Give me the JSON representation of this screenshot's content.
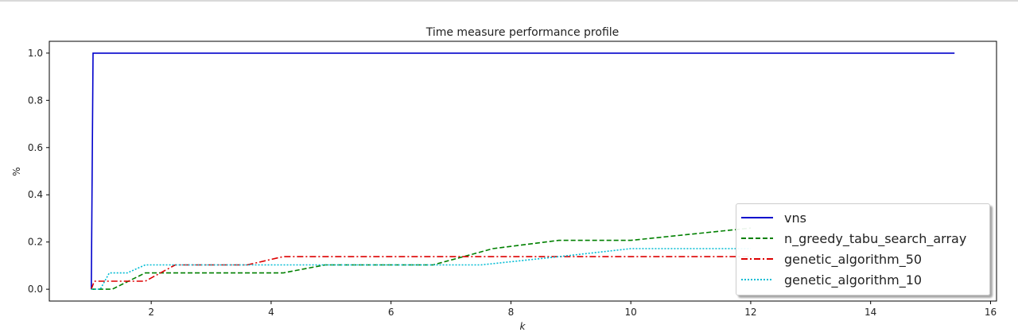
{
  "chart_data": {
    "type": "line",
    "title": "Time measure performance profile",
    "xlabel": "k",
    "ylabel": "%",
    "xlim": [
      0.3,
      16.1
    ],
    "ylim": [
      -0.05,
      1.05
    ],
    "xticks": [
      2,
      4,
      6,
      8,
      10,
      12,
      14,
      16
    ],
    "yticks": [
      "0.0",
      "0.2",
      "0.4",
      "0.6",
      "0.8",
      "1.0"
    ],
    "grid": false,
    "legend_position": "lower-right",
    "series": [
      {
        "name": "vns",
        "color": "#0000cc",
        "style": "solid",
        "points": [
          [
            1.0,
            0.0
          ],
          [
            1.03,
            1.0
          ],
          [
            15.4,
            1.0
          ]
        ]
      },
      {
        "name": "n_greedy_tabu_search_array",
        "color": "#008000",
        "style": "dashed",
        "points": [
          [
            1.0,
            0.0
          ],
          [
            1.35,
            0.0
          ],
          [
            1.9,
            0.069
          ],
          [
            4.2,
            0.069
          ],
          [
            4.9,
            0.103
          ],
          [
            6.7,
            0.103
          ],
          [
            7.7,
            0.172
          ],
          [
            8.8,
            0.207
          ],
          [
            10.0,
            0.207
          ],
          [
            12.0,
            0.259
          ]
        ]
      },
      {
        "name": "genetic_algorithm_50",
        "color": "#dd0000",
        "style": "dashdot",
        "points": [
          [
            1.0,
            0.0
          ],
          [
            1.05,
            0.034
          ],
          [
            1.9,
            0.034
          ],
          [
            2.4,
            0.103
          ],
          [
            3.6,
            0.103
          ],
          [
            4.2,
            0.138
          ],
          [
            12.0,
            0.138
          ]
        ]
      },
      {
        "name": "genetic_algorithm_10",
        "color": "#00bcd4",
        "style": "dotted",
        "points": [
          [
            1.0,
            0.0
          ],
          [
            1.15,
            0.0
          ],
          [
            1.3,
            0.069
          ],
          [
            1.6,
            0.069
          ],
          [
            1.9,
            0.103
          ],
          [
            6.5,
            0.103
          ],
          [
            7.5,
            0.103
          ],
          [
            8.8,
            0.138
          ],
          [
            10.0,
            0.172
          ],
          [
            12.0,
            0.172
          ]
        ]
      }
    ]
  }
}
